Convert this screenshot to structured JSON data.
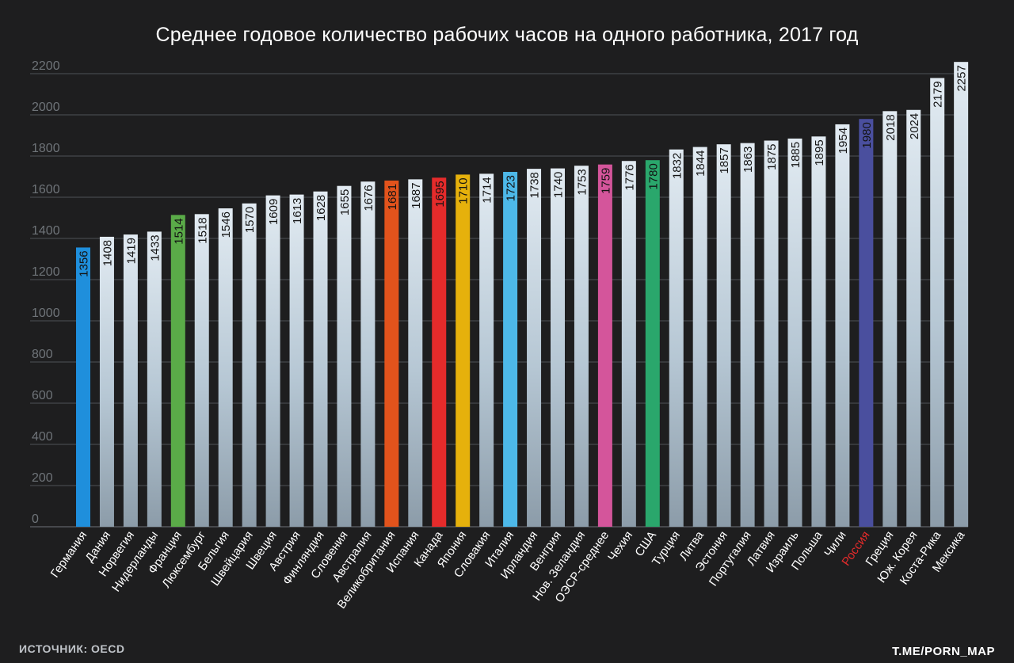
{
  "chart_data": {
    "type": "bar",
    "title": "Среднее годовое количество рабочих часов на одного работника, 2017 год",
    "source": "ИСТОЧНИК: OECD",
    "credit": "T.ME/PORN_MAP",
    "ylim": [
      0,
      2200
    ],
    "yticks": [
      0,
      200,
      400,
      600,
      800,
      1000,
      1200,
      1400,
      1600,
      1800,
      2000,
      2200
    ],
    "grid": true,
    "default_bar_color": "#c4d5e2",
    "categories": [
      "Германия",
      "Дания",
      "Норвегия",
      "Нидерланды",
      "Франция",
      "Люксембург",
      "Бельгия",
      "Швейцария",
      "Швеция",
      "Австрия",
      "Финляндия",
      "Словения",
      "Австралия",
      "Великобритания",
      "Испания",
      "Канада",
      "Япония",
      "Словакия",
      "Италия",
      "Ирландия",
      "Венгрия",
      "Нов. Зеландия",
      "ОЭСР-среднее",
      "Чехия",
      "США",
      "Турция",
      "Литва",
      "Эстония",
      "Португалия",
      "Латвия",
      "Израиль",
      "Польша",
      "Чили",
      "Россия",
      "Греция",
      "Юж. Корея",
      "Коста-Рика",
      "Мексика"
    ],
    "values": [
      1356,
      1408,
      1419,
      1433,
      1514,
      1518,
      1546,
      1570,
      1609,
      1613,
      1628,
      1655,
      1676,
      1681,
      1687,
      1695,
      1710,
      1714,
      1723,
      1738,
      1740,
      1753,
      1759,
      1776,
      1780,
      1832,
      1844,
      1857,
      1863,
      1875,
      1885,
      1895,
      1954,
      1980,
      2018,
      2024,
      2179,
      2257
    ],
    "highlight_colors": {
      "Германия": "#1f8fdc",
      "Франция": "#5aab48",
      "Великобритания": "#e2531c",
      "Канада": "#e52b2b",
      "Япония": "#e6b10c",
      "Италия": "#4db8e8",
      "ОЭСР-среднее": "#d4559b",
      "США": "#2aa76c",
      "Россия": "#4a4f9e"
    },
    "highlight_label_colors": {
      "Россия": "#e52b2b"
    }
  }
}
